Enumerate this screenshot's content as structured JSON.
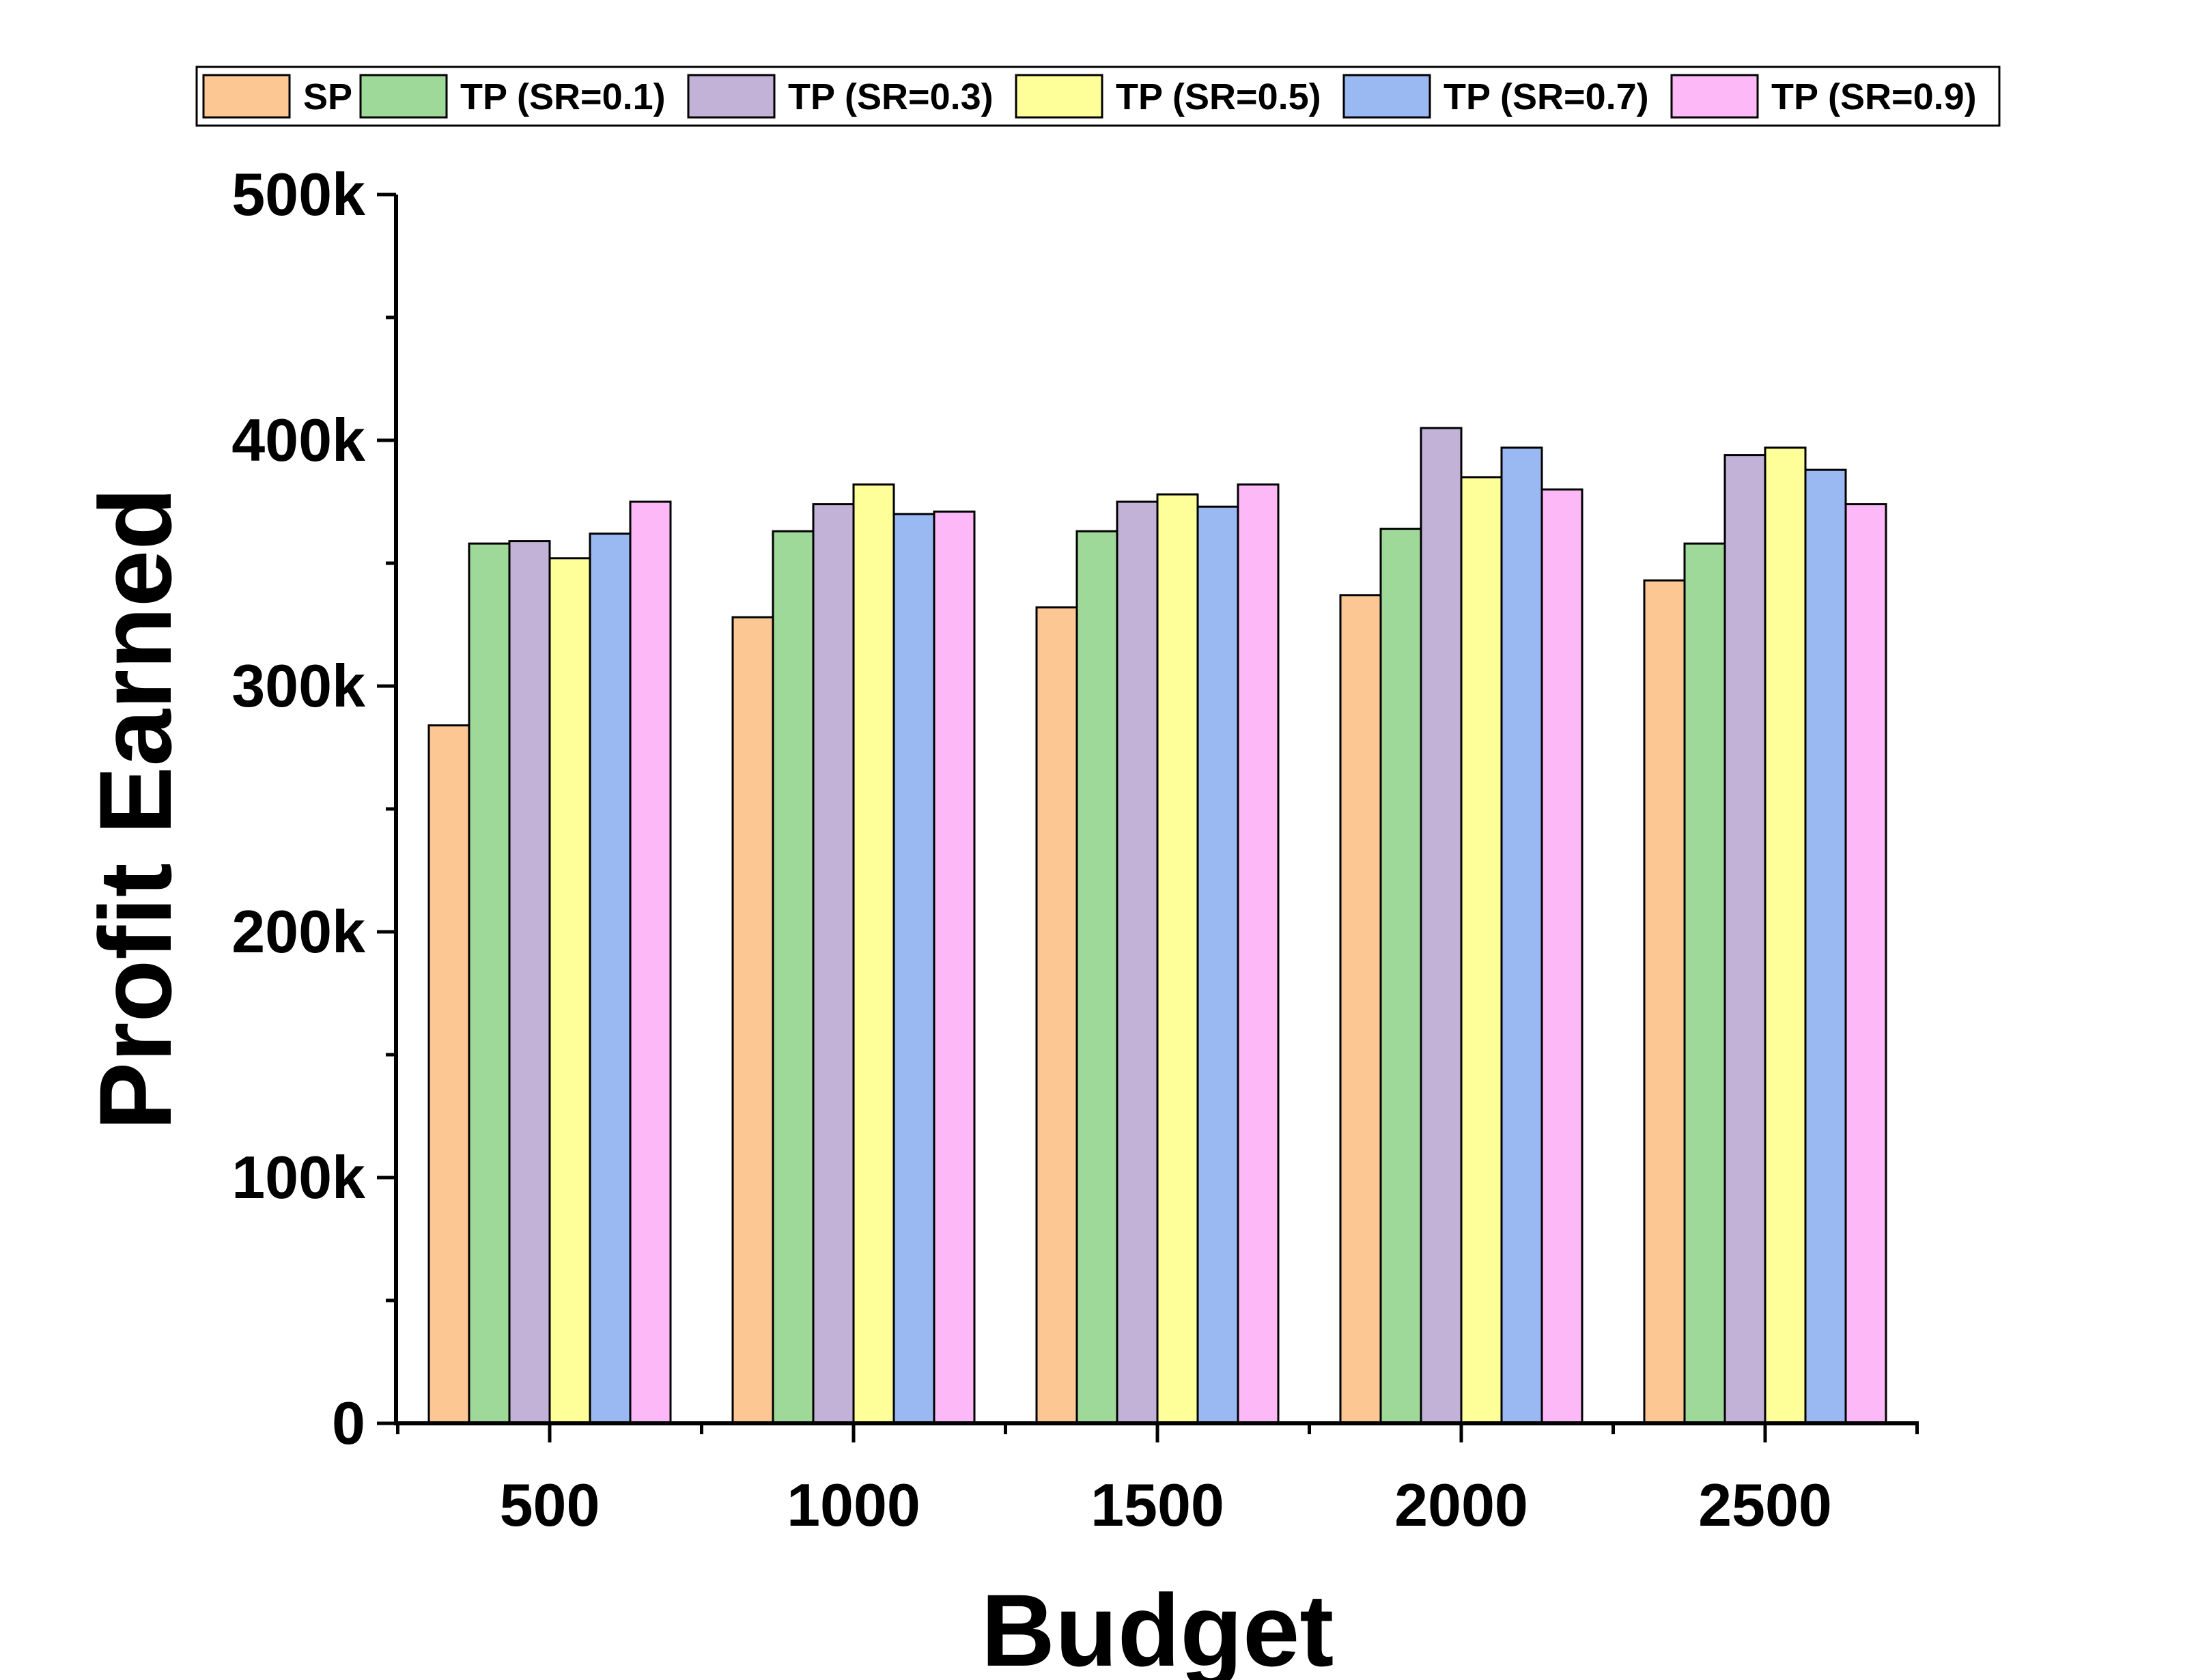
{
  "chart_data": {
    "type": "bar",
    "categories": [
      "500",
      "1000",
      "1500",
      "2000",
      "2500"
    ],
    "series": [
      {
        "name": "SP",
        "color": "#FDC793",
        "values": [
          284000,
          328000,
          332000,
          337000,
          343000
        ]
      },
      {
        "name": "TP (SR=0.1)",
        "color": "#9FD99A",
        "values": [
          358000,
          363000,
          363000,
          364000,
          358000
        ]
      },
      {
        "name": "TP (SR=0.3)",
        "color": "#C3B2D8",
        "values": [
          359000,
          374000,
          375000,
          405000,
          394000
        ]
      },
      {
        "name": "TP (SR=0.5)",
        "color": "#FFFF99",
        "values": [
          352000,
          382000,
          378000,
          385000,
          397000
        ]
      },
      {
        "name": "TP (SR=0.7)",
        "color": "#9AB8F2",
        "values": [
          362000,
          370000,
          373000,
          397000,
          388000
        ]
      },
      {
        "name": "TP (SR=0.9)",
        "color": "#FDB8F7",
        "values": [
          375000,
          371000,
          382000,
          380000,
          374000
        ]
      }
    ],
    "xlabel": "Budget",
    "ylabel": "Profit Earned",
    "ylim": [
      0,
      500000
    ],
    "yticks": [
      0,
      100000,
      200000,
      300000,
      400000,
      500000
    ],
    "ytick_labels": [
      "0",
      "100k",
      "200k",
      "300k",
      "400k",
      "500k"
    ],
    "legend_placement": "top",
    "grid": false
  }
}
